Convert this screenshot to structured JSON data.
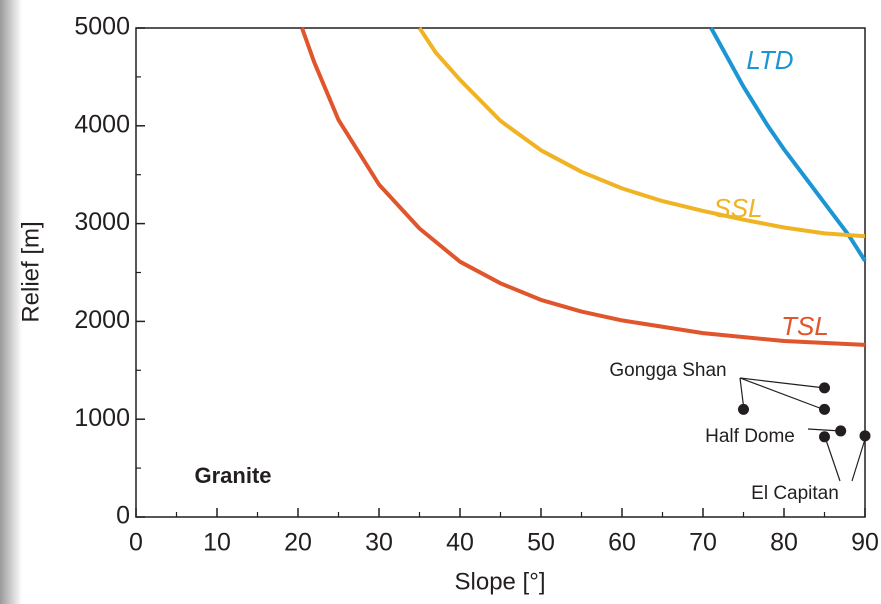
{
  "chart_data": {
    "type": "line",
    "x_label": "Slope [°]",
    "y_label": "Relief [m]",
    "xlim": [
      0,
      90
    ],
    "ylim": [
      0,
      5000
    ],
    "xticks": [
      0,
      10,
      20,
      30,
      40,
      50,
      60,
      70,
      80,
      90
    ],
    "yticks": [
      0,
      1000,
      2000,
      3000,
      4000,
      5000
    ],
    "xminorticks": [
      5,
      15,
      25,
      35,
      45,
      55,
      65,
      75,
      85
    ],
    "yminorticks": [
      500,
      1500,
      2500,
      3500,
      4500
    ],
    "series": [
      {
        "name": "LTD",
        "color": "#1b95d3",
        "x": [
          71,
          73,
          75,
          78,
          80,
          83,
          85,
          88,
          90
        ],
        "values": [
          5000,
          4700,
          4400,
          4000,
          3760,
          3430,
          3210,
          2880,
          2620
        ]
      },
      {
        "name": "SSL",
        "color": "#f0b323",
        "x": [
          35,
          37,
          40,
          45,
          50,
          55,
          60,
          65,
          70,
          75,
          80,
          85,
          90
        ],
        "values": [
          5000,
          4750,
          4470,
          4050,
          3750,
          3530,
          3360,
          3230,
          3130,
          3040,
          2960,
          2900,
          2870
        ]
      },
      {
        "name": "TSL",
        "color": "#e0552b",
        "x": [
          20.5,
          22,
          25,
          30,
          35,
          40,
          45,
          50,
          55,
          60,
          70,
          80,
          90
        ],
        "values": [
          5000,
          4650,
          4060,
          3400,
          2950,
          2610,
          2390,
          2220,
          2100,
          2010,
          1880,
          1800,
          1760
        ]
      }
    ],
    "points": {
      "color": "#231f20",
      "x": [
        75,
        85,
        85,
        87,
        85,
        90
      ],
      "values": [
        1100,
        1100,
        1320,
        880,
        820,
        830
      ]
    },
    "annotations": [
      "Granite",
      "Gongga Shan",
      "Half Dome",
      "El Capitan"
    ]
  }
}
